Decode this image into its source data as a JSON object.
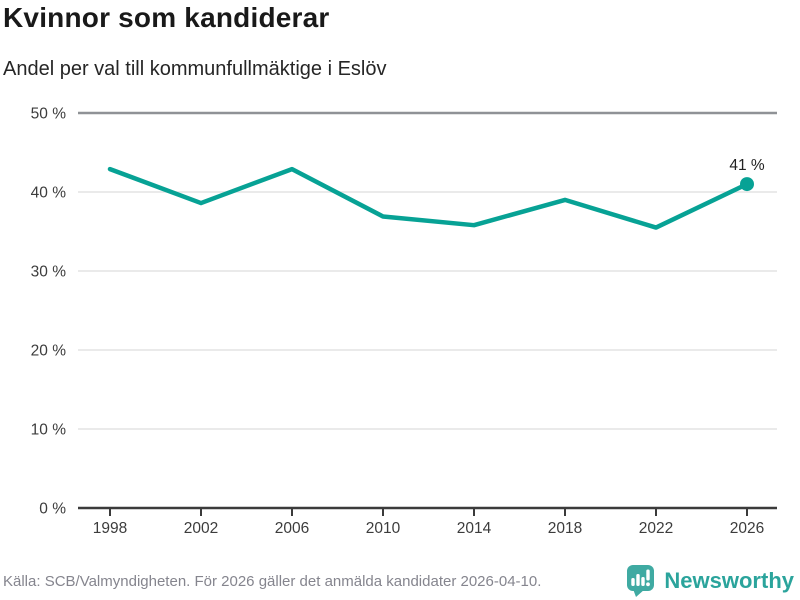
{
  "header": {
    "title": "Kvinnor som kandiderar",
    "subtitle": "Andel per val till kommunfullmäktige i Eslöv"
  },
  "chart_data": {
    "type": "line",
    "title": "Kvinnor som kandiderar",
    "subtitle": "Andel per val till kommunfullmäktige i Eslöv",
    "categories": [
      "1998",
      "2002",
      "2006",
      "2010",
      "2014",
      "2018",
      "2022",
      "2026"
    ],
    "values": [
      42.9,
      38.6,
      42.9,
      36.9,
      35.8,
      39.0,
      35.5,
      41.0
    ],
    "xlabel": "",
    "ylabel": "",
    "ylim": [
      0,
      50
    ],
    "yticks": [
      0,
      10,
      20,
      30,
      40,
      50
    ],
    "ytick_labels": [
      "0 %",
      "10 %",
      "20 %",
      "30 %",
      "40 %",
      "50 %"
    ],
    "grid": true,
    "legend": false,
    "last_point_label": "41 %",
    "line_color": "#07a295",
    "marker": "circle-on-last-point"
  },
  "footer": {
    "source": "Källa: SCB/Valmyndigheten. För 2026 gäller det anmälda kandidater 2026-04-10.",
    "brand": "Newsworthy",
    "logo_icon": "bar-chart-speech-bubble-icon"
  },
  "colors": {
    "accent_teal": "#07a295",
    "brand_teal": "#2ba49c",
    "logo_teal": "#3faaa2",
    "grid_light": "#e3e3e3",
    "grid_top": "#8f9296",
    "axis_dark": "#3b3b3b",
    "tick_text": "#3c3c3c",
    "annotation_text": "#222222",
    "title_text": "#191919",
    "source_text": "#85858e"
  }
}
